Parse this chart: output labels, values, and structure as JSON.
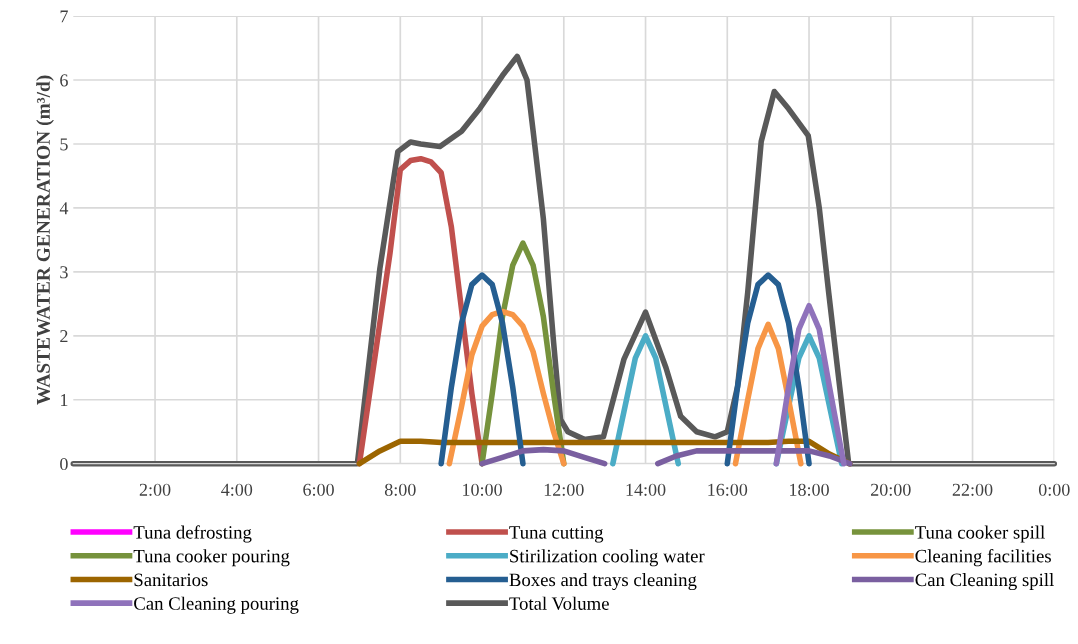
{
  "chart_data": {
    "type": "line",
    "ylabel": "WASTEWATER GENERATION (m³/d)",
    "series": [
      {
        "name": "Tuna defrosting",
        "color": "#ff00ff"
      },
      {
        "name": "Tuna cutting",
        "color": "#c0504d",
        "x": [
          7,
          7.5,
          7.75,
          8,
          8.25,
          8.5,
          8.75,
          9,
          9.25,
          9.5,
          9.75,
          10
        ],
        "values": [
          0,
          2.2,
          3.3,
          4.6,
          4.74,
          4.77,
          4.72,
          4.55,
          3.7,
          2.4,
          1.1,
          0
        ]
      },
      {
        "name": "Tuna cooker spill",
        "color": "#77933c"
      },
      {
        "name": "Tuna cooker pouring",
        "color": "#76923c",
        "x": [
          10,
          10.25,
          10.5,
          10.75,
          11,
          11.25,
          11.5,
          11.75,
          12
        ],
        "values": [
          0,
          1.1,
          2.3,
          3.1,
          3.45,
          3.1,
          2.3,
          1.1,
          0
        ]
      },
      {
        "name": "Stirilization cooling water",
        "color": "#4bacc6",
        "x": [
          13.2,
          13.5,
          13.75,
          14,
          14.25,
          14.5,
          14.8,
          null,
          17.2,
          17.5,
          17.75,
          18,
          18.25,
          18.5,
          18.8
        ],
        "values": [
          0,
          0.9,
          1.65,
          2.0,
          1.65,
          0.9,
          0,
          null,
          0,
          0.9,
          1.65,
          2.0,
          1.65,
          0.9,
          0
        ]
      },
      {
        "name": "Cleaning facilities",
        "color": "#f79646",
        "x": [
          9.2,
          9.5,
          9.75,
          10,
          10.25,
          10.5,
          10.75,
          11,
          11.25,
          11.5,
          11.75,
          12,
          null,
          16.2,
          16.5,
          16.75,
          17,
          17.25,
          17.5,
          17.8
        ],
        "values": [
          0,
          0.9,
          1.7,
          2.15,
          2.33,
          2.38,
          2.33,
          2.15,
          1.75,
          1.1,
          0.5,
          0,
          null,
          0,
          1.0,
          1.8,
          2.18,
          1.8,
          1.0,
          0
        ]
      },
      {
        "name": "Sanitarios",
        "color": "#9c6500",
        "x": [
          7,
          7.5,
          8,
          8.5,
          9,
          10,
          11,
          12,
          13,
          14,
          15,
          16,
          17,
          17.5,
          18,
          18.5,
          19
        ],
        "values": [
          0,
          0.2,
          0.35,
          0.35,
          0.33,
          0.33,
          0.33,
          0.33,
          0.33,
          0.33,
          0.33,
          0.33,
          0.33,
          0.35,
          0.35,
          0.15,
          0
        ]
      },
      {
        "name": "Boxes and trays cleaning",
        "color": "#255e91",
        "x": [
          9,
          9.25,
          9.5,
          9.75,
          10,
          10.25,
          10.5,
          10.75,
          11,
          null,
          16,
          16.25,
          16.5,
          16.75,
          17,
          17.25,
          17.5,
          17.75,
          18
        ],
        "values": [
          0,
          1.2,
          2.2,
          2.8,
          2.95,
          2.8,
          2.2,
          1.2,
          0,
          null,
          0,
          1.2,
          2.2,
          2.8,
          2.95,
          2.8,
          2.2,
          1.2,
          0
        ]
      },
      {
        "name": "Can Cleaning spill",
        "color": "#7a5fa0",
        "x": [
          10,
          10.5,
          11,
          11.5,
          12,
          12.5,
          13,
          null,
          14.3,
          14.75,
          15.25,
          16,
          17,
          18,
          18.5,
          19
        ],
        "values": [
          0,
          0.1,
          0.2,
          0.22,
          0.2,
          0.1,
          0,
          null,
          0,
          0.12,
          0.2,
          0.2,
          0.2,
          0.2,
          0.12,
          0
        ]
      },
      {
        "name": "Can Cleaning pouring",
        "color": "#8f72bb",
        "x": [
          17.2,
          17.5,
          17.75,
          18,
          18.25,
          18.5,
          18.85
        ],
        "values": [
          0,
          1.2,
          2.1,
          2.47,
          2.1,
          1.2,
          0
        ]
      },
      {
        "name": "Total Volume",
        "color": "#595959",
        "x": [
          0,
          2,
          4,
          6,
          6.95,
          7.5,
          7.94,
          8.25,
          8.5,
          8.97,
          9.5,
          9.95,
          10.5,
          10.86,
          11.1,
          11.25,
          11.5,
          11.75,
          11.92,
          12.1,
          12.5,
          12.97,
          13.47,
          14,
          14.5,
          14.86,
          15.25,
          15.7,
          16,
          16.25,
          16.5,
          16.83,
          17.15,
          17.5,
          17.98,
          18.25,
          18.48,
          18.75,
          18.97,
          20,
          22,
          24
        ],
        "values": [
          0,
          0,
          0,
          0,
          0,
          3.05,
          4.88,
          5.03,
          5.0,
          4.96,
          5.2,
          5.56,
          6.07,
          6.37,
          6.0,
          5.2,
          3.83,
          1.9,
          0.69,
          0.5,
          0.38,
          0.42,
          1.63,
          2.37,
          1.5,
          0.74,
          0.5,
          0.42,
          0.5,
          1.2,
          2.68,
          5.04,
          5.82,
          5.55,
          5.13,
          4.0,
          2.68,
          1.2,
          0,
          0,
          0,
          0
        ]
      }
    ],
    "xlim": [
      0,
      24
    ],
    "xticks": [
      {
        "value": 2,
        "label": "2:00"
      },
      {
        "value": 4,
        "label": "4:00"
      },
      {
        "value": 6,
        "label": "6:00"
      },
      {
        "value": 8,
        "label": "8:00"
      },
      {
        "value": 10,
        "label": "10:00"
      },
      {
        "value": 12,
        "label": "12:00"
      },
      {
        "value": 14,
        "label": "14:00"
      },
      {
        "value": 16,
        "label": "16:00"
      },
      {
        "value": 18,
        "label": "18:00"
      },
      {
        "value": 20,
        "label": "20:00"
      },
      {
        "value": 22,
        "label": "22:00"
      },
      {
        "value": 24,
        "label": "0:00"
      }
    ],
    "ylim": [
      0,
      7
    ],
    "yticks": [
      0,
      1,
      2,
      3,
      4,
      5,
      6,
      7
    ],
    "grid": true,
    "legend": "bottom",
    "marker": "none",
    "line_style": "solid"
  }
}
